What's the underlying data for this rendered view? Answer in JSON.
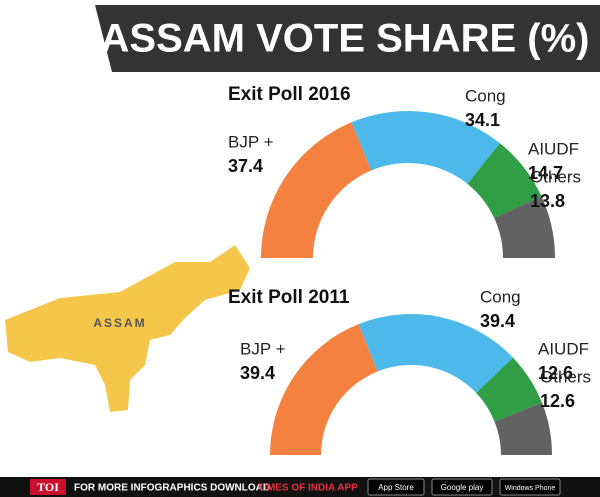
{
  "title": "ASSAM VOTE SHARE (%)",
  "map_label": "ASSAM",
  "chart_data": [
    {
      "type": "half-donut",
      "title": "Exit Poll 2016",
      "categories": [
        "BJP +",
        "Cong",
        "AIUDF",
        "Others"
      ],
      "values": [
        37.4,
        34.1,
        14.7,
        13.8
      ],
      "colors": [
        "#f4813f",
        "#4cb9ea",
        "#2f9e45",
        "#626262"
      ]
    },
    {
      "type": "half-donut",
      "title": "Exit Poll 2011",
      "categories": [
        "BJP +",
        "Cong",
        "AIUDF",
        "Others"
      ],
      "values": [
        39.4,
        39.4,
        12.6,
        12.6
      ],
      "colors": [
        "#f4813f",
        "#4cb9ea",
        "#2f9e45",
        "#626262"
      ]
    }
  ],
  "footer": {
    "brand": "TOI",
    "text": "FOR MORE  INFOGRAPHICS DOWNLOAD",
    "app": "TIMES OF INDIA APP",
    "badges": [
      "App Store",
      "Google play",
      "Windows Phone"
    ]
  }
}
